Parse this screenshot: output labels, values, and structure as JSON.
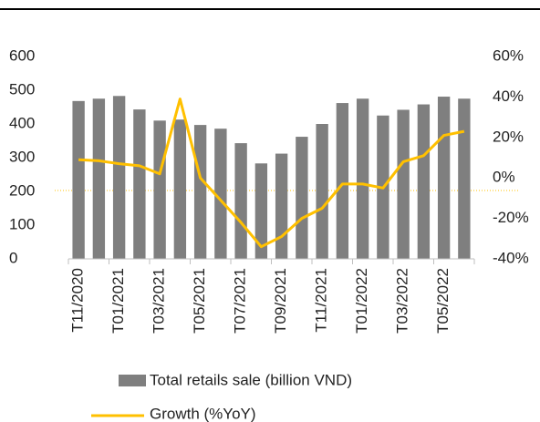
{
  "chart_data": {
    "type": "bar-line",
    "categories": [
      "T11/2020",
      null,
      "T01/2021",
      null,
      "T03/2021",
      null,
      "T05/2021",
      null,
      "T07/2021",
      null,
      "T09/2021",
      null,
      "T11/2021",
      null,
      "T01/2022",
      null,
      "T03/2022",
      null,
      "T05/2022",
      null
    ],
    "series": [
      {
        "name": "Total retails sale (billion VND)",
        "color": "#7f7f7f",
        "values": [
          468,
          475,
          483,
          443,
          410,
          413,
          397,
          386,
          343,
          283,
          312,
          362,
          400,
          462,
          475,
          425,
          442,
          458,
          481,
          475
        ]
      },
      {
        "name": "Growth (%YoY)",
        "color": "#ffc000",
        "axis": "y2",
        "values": [
          9,
          8.5,
          7,
          6,
          2,
          39,
          0,
          -11,
          -22,
          -34,
          -29,
          -20,
          -15,
          -3,
          -3,
          -5,
          8,
          11,
          21,
          23
        ]
      }
    ],
    "ylim": [
      0,
      600
    ],
    "yticks": [
      0,
      100,
      200,
      300,
      400,
      500,
      600
    ],
    "y2lim": [
      -40,
      60
    ],
    "y2ticks": [
      {
        "value": -40,
        "label": "-40%"
      },
      {
        "value": -20,
        "label": "-20%"
      },
      {
        "value": 0,
        "label": "0%"
      },
      {
        "value": 20,
        "label": "20%"
      },
      {
        "value": 40,
        "label": "40%"
      },
      {
        "value": 60,
        "label": "60%"
      }
    ]
  }
}
